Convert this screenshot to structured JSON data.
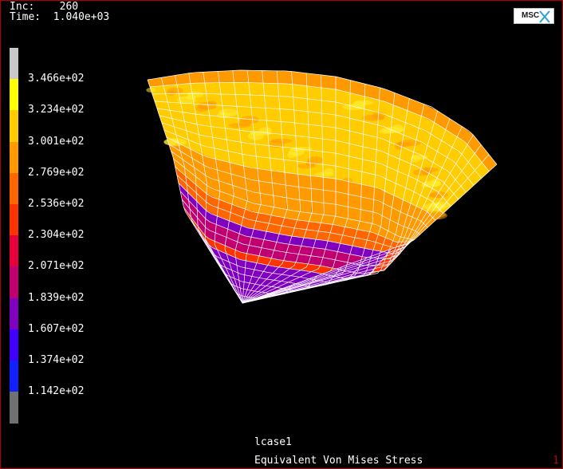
{
  "header": {
    "inc_label": "Inc:",
    "inc_value": "260",
    "time_label": "Time:",
    "time_value": "1.040e+03"
  },
  "logo": {
    "text": "MSC"
  },
  "legend": {
    "labels": [
      "3.466e+02",
      "3.234e+02",
      "3.001e+02",
      "2.769e+02",
      "2.536e+02",
      "2.304e+02",
      "2.071e+02",
      "1.839e+02",
      "1.607e+02",
      "1.374e+02",
      "1.142e+02"
    ],
    "colors": [
      "#c8c8c8",
      "#ffff00",
      "#ffcc00",
      "#ff9900",
      "#ff6600",
      "#ff3300",
      "#e8003a",
      "#c00070",
      "#8000c0",
      "#4000ff",
      "#1020ff",
      "#707070"
    ]
  },
  "footer": {
    "loadcase": "lcase1",
    "quantity": "Equivalent Von Mises Stress",
    "window_number": "1"
  },
  "colors": {
    "background": "#000000",
    "frame": "#b00000",
    "mesh_lines": "#ffffff"
  }
}
